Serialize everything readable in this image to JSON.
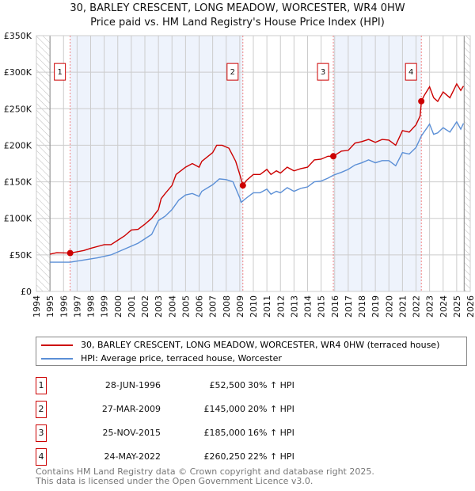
{
  "title": "30, BARLEY CRESCENT, LONG MEADOW, WORCESTER, WR4 0HW",
  "subtitle": "Price paid vs. HM Land Registry's House Price Index (HPI)",
  "colors": {
    "property": "#cc0000",
    "hpi": "#5b8fd6",
    "shade": "#eef3fc"
  },
  "chart_data": {
    "type": "line",
    "title": "30, BARLEY CRESCENT, LONG MEADOW, WORCESTER, WR4 0HW",
    "xlim": [
      1994,
      2026
    ],
    "ylim": [
      0,
      350000
    ],
    "x_ticks": [
      "1994",
      "1995",
      "1996",
      "1997",
      "1998",
      "1999",
      "2000",
      "2001",
      "2002",
      "2003",
      "2004",
      "2005",
      "2006",
      "2007",
      "2008",
      "2009",
      "2010",
      "2011",
      "2012",
      "2013",
      "2014",
      "2015",
      "2016",
      "2017",
      "2018",
      "2019",
      "2020",
      "2021",
      "2022",
      "2023",
      "2024",
      "2025",
      "2026"
    ],
    "y_ticks": [
      {
        "v": 0,
        "label": "£0"
      },
      {
        "v": 50000,
        "label": "£50K"
      },
      {
        "v": 100000,
        "label": "£100K"
      },
      {
        "v": 150000,
        "label": "£150K"
      },
      {
        "v": 200000,
        "label": "£200K"
      },
      {
        "v": 250000,
        "label": "£250K"
      },
      {
        "v": 300000,
        "label": "£300K"
      },
      {
        "v": 350000,
        "label": "£350K"
      }
    ],
    "grid": true,
    "series": [
      {
        "name": "30, BARLEY CRESCENT, LONG MEADOW, WORCESTER, WR4 0HW (terraced house)",
        "color": "#cc0000",
        "x": [
          1995,
          1995.5,
          1996.5,
          1997.5,
          1998,
          1999,
          1999.5,
          2000,
          2000.5,
          2001,
          2001.5,
          2002,
          2002.5,
          2003,
          2003.2,
          2003.5,
          2004,
          2004.3,
          2005,
          2005.5,
          2006,
          2006.2,
          2007,
          2007.3,
          2007.7,
          2008.2,
          2008.7,
          2009,
          2009.23,
          2009.5,
          2010,
          2010.5,
          2011,
          2011.3,
          2011.7,
          2012,
          2012.5,
          2013,
          2013.5,
          2014,
          2014.5,
          2015,
          2015.5,
          2015.9,
          2016.5,
          2017,
          2017.5,
          2018,
          2018.5,
          2019,
          2019.5,
          2020,
          2020.5,
          2021,
          2021.5,
          2022,
          2022.3,
          2022.4,
          2022.6,
          2023,
          2023.3,
          2023.6,
          2024,
          2024.5,
          2025,
          2025.3,
          2025.5
        ],
        "y": [
          51000,
          53000,
          52500,
          56000,
          59000,
          64000,
          64000,
          70000,
          76000,
          84000,
          85000,
          92000,
          100000,
          112000,
          127000,
          134000,
          145000,
          160000,
          170000,
          175000,
          170000,
          178000,
          190000,
          200000,
          200000,
          196000,
          178000,
          160000,
          145000,
          152000,
          160000,
          160000,
          167000,
          160000,
          165000,
          162000,
          170000,
          165000,
          168000,
          170000,
          180000,
          181000,
          185000,
          185000,
          192000,
          193000,
          203000,
          205000,
          208000,
          204000,
          208000,
          207000,
          200000,
          220000,
          218000,
          228000,
          240000,
          260250,
          268000,
          280000,
          265000,
          260000,
          273000,
          265000,
          284000,
          275000,
          281000
        ]
      },
      {
        "name": "HPI: Average price, terraced house, Worcester",
        "color": "#5b8fd6",
        "x": [
          1995,
          1996.5,
          1997.5,
          1998.5,
          1999.5,
          2000.5,
          2001.5,
          2002.5,
          2003,
          2003.5,
          2004,
          2004.5,
          2005,
          2005.5,
          2006,
          2006.2,
          2007,
          2007.5,
          2008,
          2008.5,
          2009,
          2009.1,
          2009.5,
          2010,
          2010.5,
          2011,
          2011.3,
          2011.7,
          2012,
          2012.5,
          2013,
          2013.5,
          2014,
          2014.5,
          2015,
          2015.5,
          2015.9,
          2016.5,
          2017,
          2017.5,
          2018,
          2018.5,
          2019,
          2019.5,
          2020,
          2020.5,
          2021,
          2021.5,
          2022,
          2022.4,
          2023,
          2023.3,
          2023.6,
          2024,
          2024.5,
          2025,
          2025.3,
          2025.5
        ],
        "y": [
          40000,
          40000,
          43000,
          46000,
          50000,
          58000,
          66000,
          78000,
          97000,
          103000,
          112000,
          125000,
          132000,
          134000,
          130000,
          137000,
          146000,
          154000,
          153000,
          150000,
          128000,
          122000,
          128000,
          135000,
          135000,
          140000,
          133000,
          137000,
          135000,
          142000,
          137000,
          141000,
          143000,
          150000,
          151000,
          155000,
          159000,
          163000,
          167000,
          173000,
          176000,
          180000,
          176000,
          179000,
          179000,
          172000,
          190000,
          188000,
          197000,
          213000,
          229000,
          215000,
          217000,
          224000,
          218000,
          232000,
          222000,
          230000
        ]
      }
    ],
    "sales": [
      {
        "label": "1",
        "x": 1996.49,
        "y": 52500
      },
      {
        "label": "2",
        "x": 2009.23,
        "y": 145000
      },
      {
        "label": "3",
        "x": 2015.9,
        "y": 185000
      },
      {
        "label": "4",
        "x": 2022.39,
        "y": 260250
      }
    ],
    "legend_placement": "below"
  },
  "legend": [
    {
      "label": "30, BARLEY CRESCENT, LONG MEADOW, WORCESTER, WR4 0HW (terraced house)"
    },
    {
      "label": "HPI: Average price, terraced house, Worcester"
    }
  ],
  "transactions": [
    {
      "num": "1",
      "date": "28-JUN-1996",
      "price": "£52,500",
      "hpi": "30% ↑ HPI"
    },
    {
      "num": "2",
      "date": "27-MAR-2009",
      "price": "£145,000",
      "hpi": "20% ↑ HPI"
    },
    {
      "num": "3",
      "date": "25-NOV-2015",
      "price": "£185,000",
      "hpi": "16% ↑ HPI"
    },
    {
      "num": "4",
      "date": "24-MAY-2022",
      "price": "£260,250",
      "hpi": "22% ↑ HPI"
    }
  ],
  "footer": [
    "Contains HM Land Registry data © Crown copyright and database right 2025.",
    "This data is licensed under the Open Government Licence v3.0."
  ]
}
